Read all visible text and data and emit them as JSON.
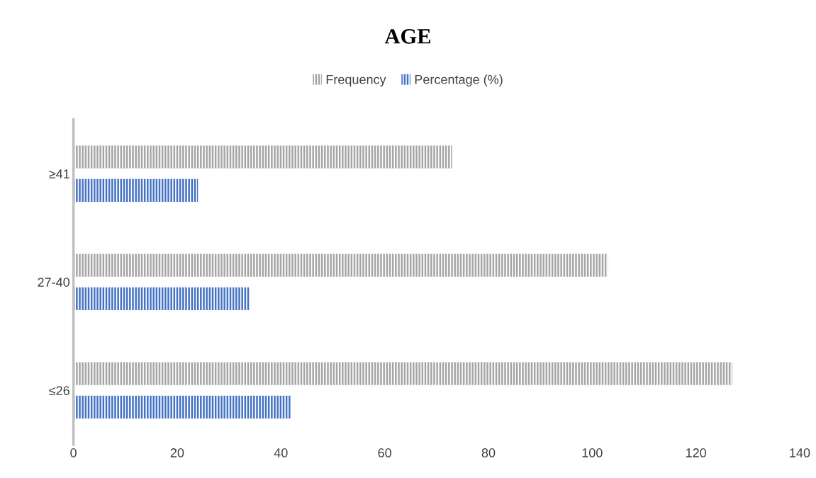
{
  "chart_data": {
    "type": "bar",
    "orientation": "horizontal",
    "title": "AGE",
    "categories": [
      "≥41",
      "27-40",
      "≤26"
    ],
    "series": [
      {
        "name": "Frequency",
        "color": "#a5a5a5",
        "values": [
          73,
          103,
          127
        ]
      },
      {
        "name": "Percentage (%)",
        "color": "#4472c4",
        "values": [
          24,
          34,
          42
        ]
      }
    ],
    "xlim": [
      0,
      140
    ],
    "xticks": [
      0,
      20,
      40,
      60,
      80,
      100,
      120,
      140
    ],
    "grid": false,
    "legend": "top"
  }
}
